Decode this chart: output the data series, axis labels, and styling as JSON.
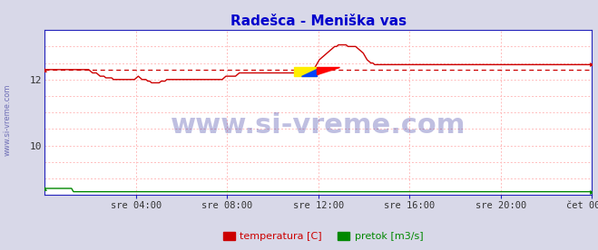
{
  "title": "Radešca - Meniška vas",
  "title_color": "#0000cc",
  "title_fontsize": 11,
  "bg_color": "#d8d8e8",
  "plot_bg_color": "#ffffff",
  "grid_color": "#ffbbbb",
  "axis_color": "#2222bb",
  "xlim": [
    0,
    288
  ],
  "ylim": [
    8.5,
    13.5
  ],
  "yticks": [
    10,
    12
  ],
  "ytick_labels": [
    "10",
    "12"
  ],
  "xtick_positions": [
    48,
    96,
    144,
    192,
    240,
    288
  ],
  "xtick_labels": [
    "sre 04:00",
    "sre 08:00",
    "sre 12:00",
    "sre 16:00",
    "sre 20:00",
    "čet 00:00"
  ],
  "temp_color": "#cc0000",
  "flow_color": "#008800",
  "avg_color": "#cc0000",
  "watermark_text": "www.si-vreme.com",
  "watermark_color": "#000088",
  "watermark_alpha": 0.25,
  "watermark_fontsize": 22,
  "legend_labels": [
    "temperatura [C]",
    "pretok [m3/s]"
  ],
  "legend_colors": [
    "#cc0000",
    "#008800"
  ],
  "temp_data": [
    12.3,
    12.3,
    12.3,
    12.3,
    12.3,
    12.3,
    12.3,
    12.3,
    12.3,
    12.3,
    12.3,
    12.3,
    12.3,
    12.3,
    12.3,
    12.3,
    12.3,
    12.3,
    12.3,
    12.3,
    12.3,
    12.3,
    12.3,
    12.3,
    12.25,
    12.2,
    12.2,
    12.2,
    12.15,
    12.1,
    12.1,
    12.1,
    12.05,
    12.05,
    12.05,
    12.05,
    12.0,
    12.0,
    12.0,
    12.0,
    12.0,
    12.0,
    12.0,
    12.0,
    12.0,
    12.0,
    12.0,
    12.0,
    12.05,
    12.1,
    12.05,
    12.0,
    12.0,
    12.0,
    11.95,
    11.95,
    11.9,
    11.9,
    11.9,
    11.9,
    11.9,
    11.95,
    11.95,
    11.95,
    12.0,
    12.0,
    12.0,
    12.0,
    12.0,
    12.0,
    12.0,
    12.0,
    12.0,
    12.0,
    12.0,
    12.0,
    12.0,
    12.0,
    12.0,
    12.0,
    12.0,
    12.0,
    12.0,
    12.0,
    12.0,
    12.0,
    12.0,
    12.0,
    12.0,
    12.0,
    12.0,
    12.0,
    12.0,
    12.0,
    12.05,
    12.1,
    12.1,
    12.1,
    12.1,
    12.1,
    12.1,
    12.15,
    12.2,
    12.2,
    12.2,
    12.2,
    12.2,
    12.2,
    12.2,
    12.2,
    12.2,
    12.2,
    12.2,
    12.2,
    12.2,
    12.2,
    12.2,
    12.2,
    12.2,
    12.2,
    12.2,
    12.2,
    12.2,
    12.2,
    12.2,
    12.2,
    12.2,
    12.2,
    12.2,
    12.2,
    12.2,
    12.2,
    12.2,
    12.2,
    12.2,
    12.2,
    12.2,
    12.2,
    12.2,
    12.2,
    12.2,
    12.3,
    12.4,
    12.5,
    12.6,
    12.65,
    12.7,
    12.75,
    12.8,
    12.85,
    12.9,
    12.95,
    13.0,
    13.0,
    13.05,
    13.05,
    13.05,
    13.05,
    13.05,
    13.0,
    13.0,
    13.0,
    13.0,
    13.0,
    12.95,
    12.9,
    12.85,
    12.8,
    12.7,
    12.6,
    12.55,
    12.5,
    12.5,
    12.45,
    12.45,
    12.45,
    12.45,
    12.45,
    12.45,
    12.45,
    12.45,
    12.45,
    12.45,
    12.45,
    12.45,
    12.45,
    12.45,
    12.45,
    12.45,
    12.45,
    12.45,
    12.45,
    12.45,
    12.45,
    12.45,
    12.45,
    12.45,
    12.45,
    12.45,
    12.45,
    12.45,
    12.45,
    12.45,
    12.45,
    12.45,
    12.45,
    12.45,
    12.45,
    12.45,
    12.45,
    12.45,
    12.45,
    12.45,
    12.45,
    12.45,
    12.45,
    12.45,
    12.45,
    12.45,
    12.45,
    12.45,
    12.45,
    12.45,
    12.45,
    12.45,
    12.45,
    12.45,
    12.45,
    12.45,
    12.45,
    12.45,
    12.45,
    12.45,
    12.45,
    12.45,
    12.45,
    12.45,
    12.45,
    12.45,
    12.45,
    12.45,
    12.45,
    12.45,
    12.45,
    12.45,
    12.45,
    12.45,
    12.45,
    12.45,
    12.45,
    12.45,
    12.45,
    12.45,
    12.45,
    12.45,
    12.45,
    12.45,
    12.45,
    12.45,
    12.45,
    12.45,
    12.45,
    12.45,
    12.45,
    12.45,
    12.45,
    12.45,
    12.45,
    12.45,
    12.45,
    12.45,
    12.45,
    12.45,
    12.45,
    12.45,
    12.45,
    12.45,
    12.45,
    12.45,
    12.45,
    12.45,
    12.45,
    12.45,
    12.45,
    12.45,
    12.45,
    12.45,
    12.45
  ],
  "flow_base": 8.6,
  "avg_value": 12.3,
  "sidewater_text": "www.si-vreme.com",
  "sidewater_color": "#5555aa",
  "sidewater_fontsize": 6
}
